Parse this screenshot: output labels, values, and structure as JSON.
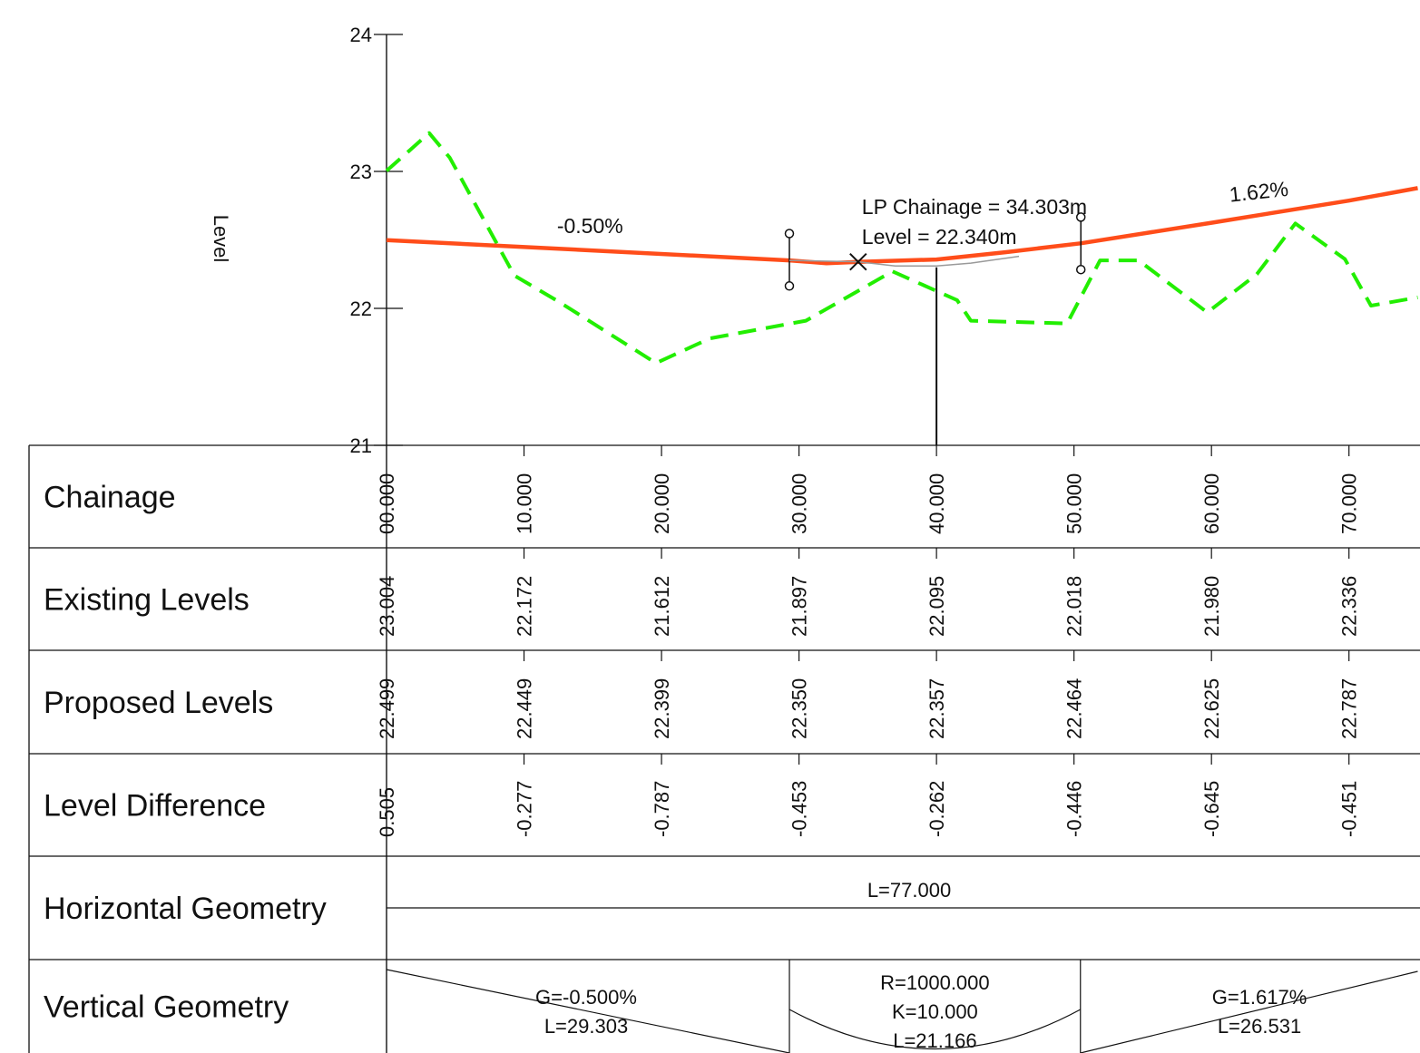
{
  "chart_data": {
    "type": "line",
    "ylabel": "Level",
    "ylim": [
      21,
      24
    ],
    "xlim": [
      0,
      75
    ],
    "y_ticks": [
      "21",
      "22",
      "23",
      "24"
    ],
    "series": [
      {
        "name": "Existing Levels",
        "style": "dashed",
        "color": "#22ee00",
        "points": [
          [
            0,
            23.004
          ],
          [
            3.1,
            23.28
          ],
          [
            4.6,
            23.1
          ],
          [
            9.3,
            22.24
          ],
          [
            12.5,
            22.05
          ],
          [
            19.6,
            21.6
          ],
          [
            23.5,
            21.78
          ],
          [
            30.5,
            21.91
          ],
          [
            36.8,
            22.27
          ],
          [
            41.5,
            22.06
          ],
          [
            42.5,
            21.91
          ],
          [
            49.5,
            21.89
          ],
          [
            51.9,
            22.35
          ],
          [
            54.7,
            22.35
          ],
          [
            59.7,
            21.97
          ],
          [
            63.3,
            22.25
          ],
          [
            66.1,
            22.62
          ],
          [
            69.7,
            22.36
          ],
          [
            71.6,
            22.02
          ],
          [
            75,
            22.08
          ]
        ]
      },
      {
        "name": "Proposed Levels",
        "style": "solid",
        "color": "#ff4d1a",
        "points": [
          [
            0,
            22.499
          ],
          [
            29.303,
            22.35
          ],
          [
            32,
            22.33
          ],
          [
            34.303,
            22.34
          ],
          [
            40,
            22.357
          ],
          [
            45,
            22.41
          ],
          [
            50.469,
            22.475
          ],
          [
            60,
            22.625
          ],
          [
            70,
            22.787
          ],
          [
            75,
            22.878
          ]
        ]
      }
    ],
    "grade_labels": [
      {
        "text": "-0.50%",
        "x": 14.8,
        "y": 22.55
      },
      {
        "text": "1.62%",
        "x": 63.5,
        "y": 22.8
      }
    ],
    "annotation": {
      "lines": [
        "LP Chainage = 34.303m",
        "Level = 22.340m"
      ],
      "x": 34.303,
      "y": 22.34
    },
    "section_marks": [
      {
        "x": 29.3,
        "top": 22.52,
        "bottom": 22.19
      },
      {
        "x": 50.5,
        "top": 22.64,
        "bottom": 22.31
      }
    ],
    "pointer_x": 40.0,
    "table": {
      "row_labels": [
        "Chainage",
        "Existing Levels",
        "Proposed Levels",
        "Level Difference",
        "Horizontal Geometry",
        "Vertical Geometry"
      ],
      "stations": [
        0,
        10,
        20,
        30,
        40,
        50,
        60,
        70
      ],
      "chainage": [
        "00.000",
        "10.000",
        "20.000",
        "30.000",
        "40.000",
        "50.000",
        "60.000",
        "70.000"
      ],
      "existing": [
        "23.004",
        "22.172",
        "21.612",
        "21.897",
        "22.095",
        "22.018",
        "21.980",
        "22.336"
      ],
      "proposed": [
        "22.499",
        "22.449",
        "22.399",
        "22.350",
        "22.357",
        "22.464",
        "22.625",
        "22.787"
      ],
      "difference": [
        "0.505",
        "-0.277",
        "-0.787",
        "-0.453",
        "-0.262",
        "-0.446",
        "-0.645",
        "-0.451"
      ],
      "horizontal_geometry": "L=77.000",
      "vertical_geometry": [
        {
          "type": "grade",
          "start": 0,
          "end": 29.303,
          "lines": [
            "G=-0.500%",
            "L=29.303"
          ]
        },
        {
          "type": "curve",
          "start": 29.303,
          "end": 50.469,
          "lines": [
            "R=1000.000",
            "K=10.000",
            "L=21.166"
          ]
        },
        {
          "type": "grade",
          "start": 50.469,
          "end": 75,
          "lines": [
            "G=1.617%",
            "L=26.531"
          ]
        }
      ]
    }
  }
}
